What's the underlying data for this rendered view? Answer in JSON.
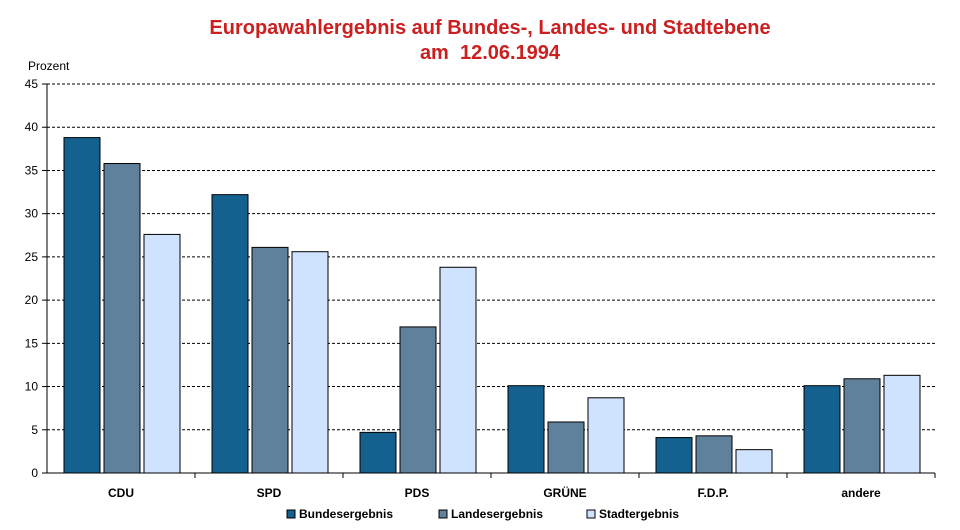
{
  "chart_data": {
    "type": "bar",
    "title": [
      "Europawahlergebnis auf Bundes-, Landes- und Stadtebene",
      "am  12.06.1994"
    ],
    "ylabel": "Prozent",
    "xlabel": "",
    "ylim": [
      0,
      45
    ],
    "yticks": [
      0,
      5,
      10,
      15,
      20,
      25,
      30,
      35,
      40,
      45
    ],
    "grid": true,
    "legend_position": "bottom",
    "categories": [
      "CDU",
      "SPD",
      "PDS",
      "GRÜNE",
      "F.D.P.",
      "andere"
    ],
    "series": [
      {
        "name": "Bundesergebnis",
        "color": "#14608f",
        "values": [
          38.8,
          32.2,
          4.7,
          10.1,
          4.1,
          10.1
        ]
      },
      {
        "name": "Landesergebnis",
        "color": "#5f819c",
        "values": [
          35.8,
          26.1,
          16.9,
          5.9,
          4.3,
          10.9
        ]
      },
      {
        "name": "Stadtergebnis",
        "color": "#cfe3ff",
        "values": [
          27.6,
          25.6,
          23.8,
          8.7,
          2.7,
          11.3
        ]
      }
    ]
  }
}
